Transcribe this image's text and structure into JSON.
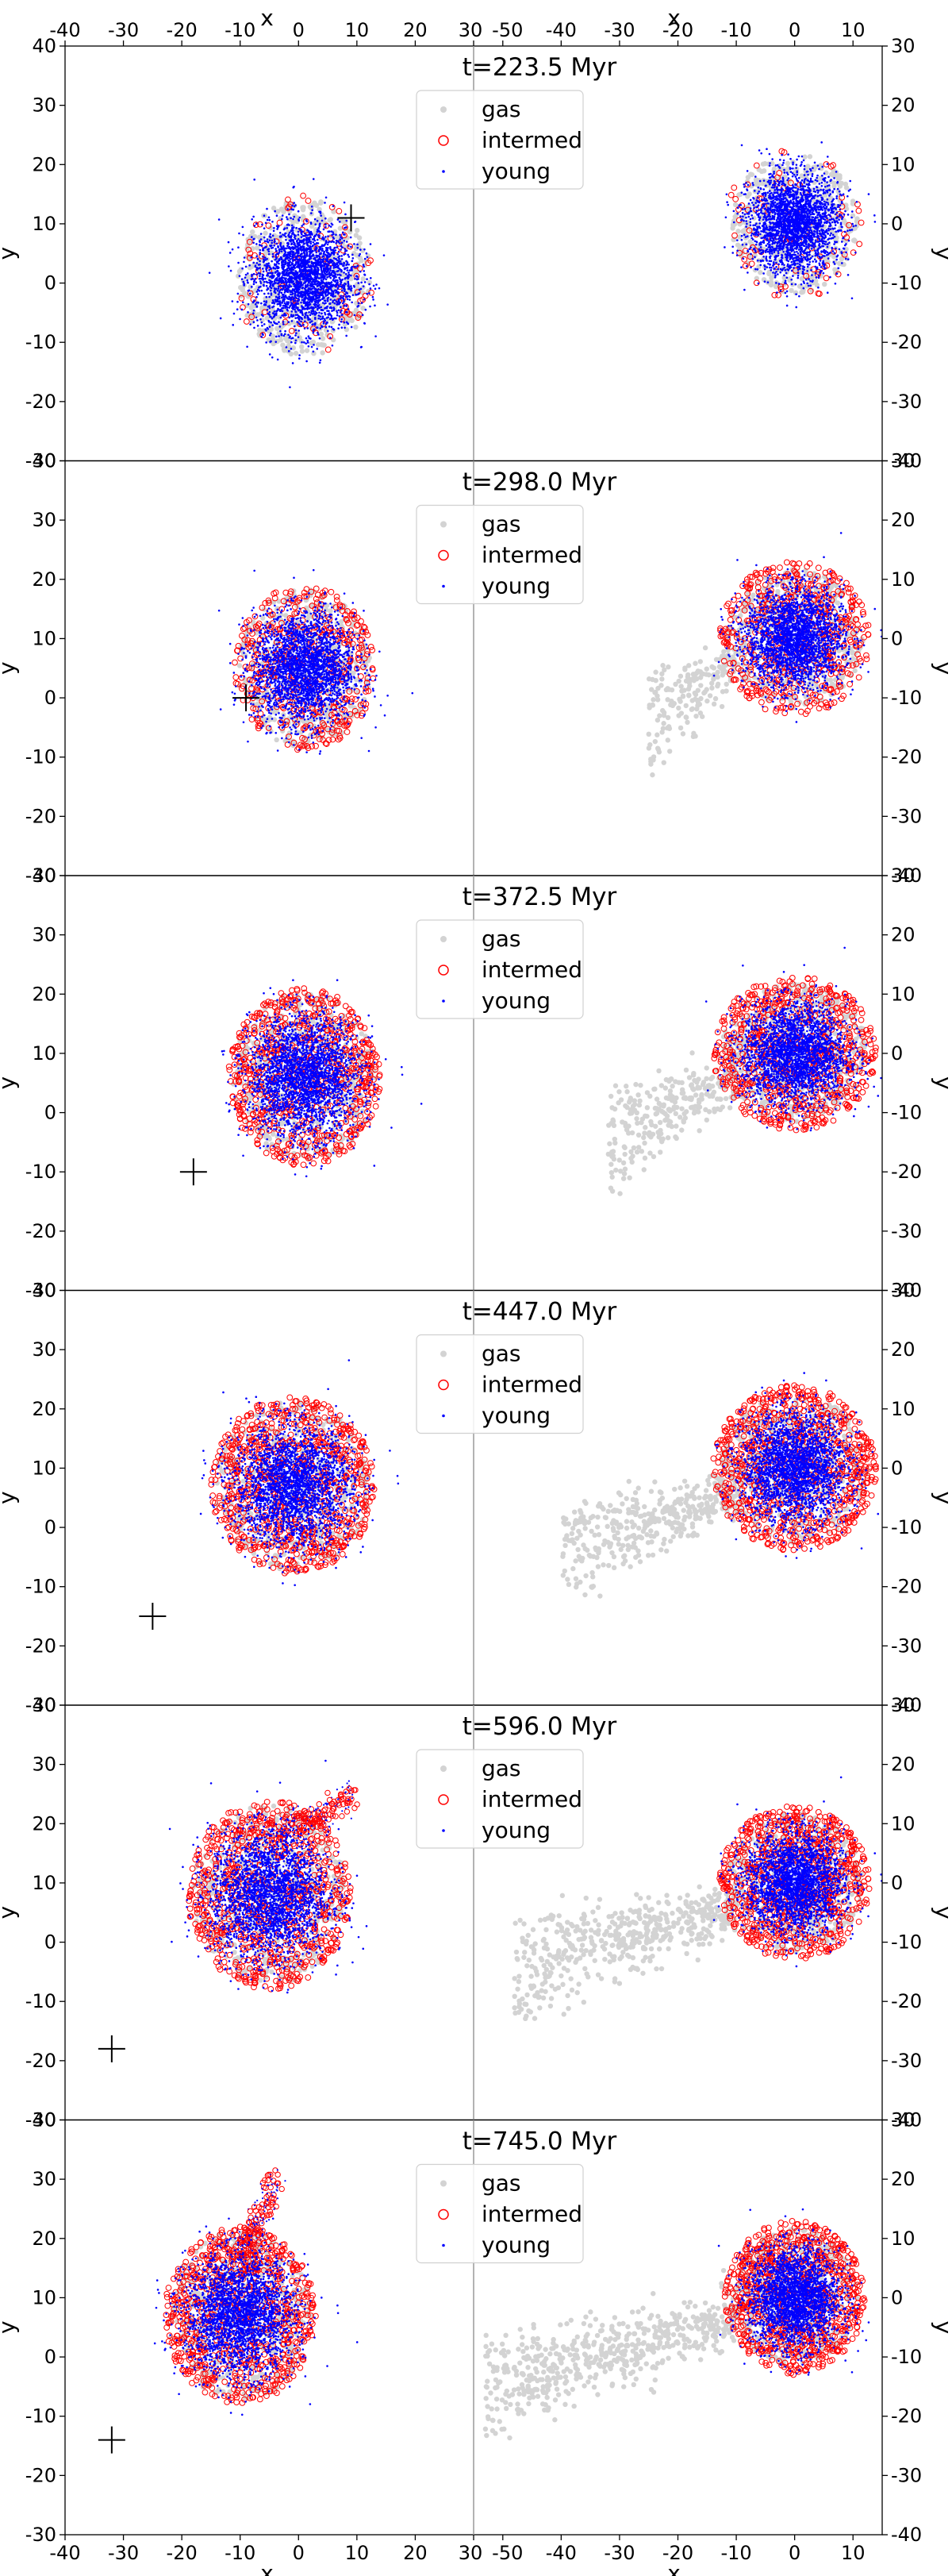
{
  "chart_data": {
    "type": "scatter",
    "description_note": "Six stacked panels, each with two side-by-side scatter subplots (left and right galaxy views). Shared x axis label 'x', y axis label 'y'.",
    "xlabel": "x",
    "ylabel": "y",
    "left_subplot": {
      "xlim": [
        -40,
        30
      ],
      "ylim": [
        -30,
        40
      ],
      "xticks": [
        "-40",
        "-30",
        "-20",
        "-10",
        "0",
        "10",
        "20",
        "30"
      ],
      "yticks": [
        "-30",
        "-20",
        "-10",
        "0",
        "10",
        "20",
        "30",
        "40"
      ]
    },
    "right_subplot": {
      "xlim": [
        -55,
        15
      ],
      "ylim": [
        -40,
        30
      ],
      "xticks": [
        "-50",
        "-40",
        "-30",
        "-20",
        "-10",
        "0",
        "10"
      ],
      "yticks": [
        "-40",
        "-30",
        "-20",
        "-10",
        "0",
        "10",
        "20",
        "30"
      ]
    },
    "legend": {
      "placement": "top-center",
      "entries": [
        "gas",
        "intermed",
        "young"
      ]
    },
    "series_styles": {
      "gas": {
        "color": "#d3d3d3",
        "marker": "dot"
      },
      "intermed": {
        "color": "#ff0000",
        "marker": "open-circle"
      },
      "young": {
        "color": "#0000ff",
        "marker": "point"
      }
    },
    "panels": [
      {
        "title": "t=223.5 Myr",
        "left": {
          "center": [
            1,
            1
          ],
          "radius_x": 12,
          "radius_y": 14,
          "marker_cross": [
            9,
            11
          ],
          "intermed_density": 0.1,
          "tail": null
        },
        "right": {
          "center": [
            0,
            0
          ],
          "radius_x": 12,
          "radius_y": 13,
          "gas_extent_left": -12,
          "intermed_density": 0.1
        }
      },
      {
        "title": "t=298.0 Myr",
        "left": {
          "center": [
            1,
            5
          ],
          "radius_x": 12,
          "radius_y": 14,
          "marker_cross": [
            -9,
            0
          ],
          "intermed_density": 0.5,
          "tail": null
        },
        "right": {
          "center": [
            0,
            0
          ],
          "radius_x": 13,
          "radius_y": 13,
          "gas_extent_left": -25,
          "intermed_density": 0.6
        }
      },
      {
        "title": "t=372.5 Myr",
        "left": {
          "center": [
            1,
            6
          ],
          "radius_x": 13,
          "radius_y": 15,
          "marker_cross": [
            -18,
            -10
          ],
          "intermed_density": 0.8,
          "tail": null
        },
        "right": {
          "center": [
            0,
            0
          ],
          "radius_x": 14,
          "radius_y": 13,
          "gas_extent_left": -32,
          "intermed_density": 0.8
        }
      },
      {
        "title": "t=447.0 Myr",
        "left": {
          "center": [
            -1,
            7
          ],
          "radius_x": 14,
          "radius_y": 15,
          "marker_cross": [
            -25,
            -15
          ],
          "intermed_density": 0.9,
          "tail": null
        },
        "right": {
          "center": [
            0,
            0
          ],
          "radius_x": 14,
          "radius_y": 14,
          "gas_extent_left": -40,
          "intermed_density": 0.9
        }
      },
      {
        "title": "t=596.0 Myr",
        "left": {
          "center": [
            -5,
            8
          ],
          "radius_x": 14,
          "radius_y": 16,
          "marker_cross": [
            -32,
            -18
          ],
          "intermed_density": 0.9,
          "tail": {
            "to": [
              10,
              25
            ]
          }
        },
        "right": {
          "center": [
            0,
            0
          ],
          "radius_x": 13,
          "radius_y": 13,
          "gas_extent_left": -48,
          "intermed_density": 0.9
        }
      },
      {
        "title": "t=745.0 Myr",
        "left": {
          "center": [
            -10,
            7
          ],
          "radius_x": 13,
          "radius_y": 15,
          "marker_cross": [
            -32,
            -14
          ],
          "intermed_density": 0.9,
          "tail": {
            "to": [
              -4,
              30
            ]
          }
        },
        "right": {
          "center": [
            0,
            0
          ],
          "radius_x": 12,
          "radius_y": 13,
          "gas_extent_left": -53,
          "intermed_density": 0.9
        }
      }
    ]
  }
}
